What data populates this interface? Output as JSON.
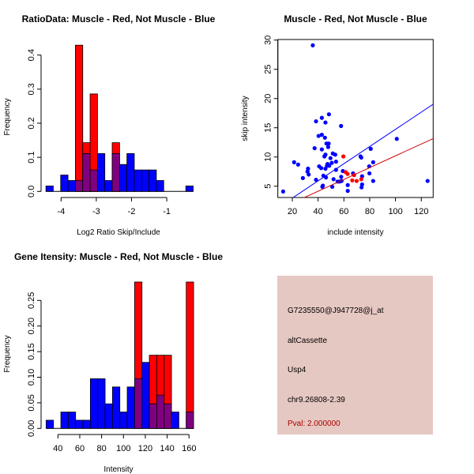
{
  "colors": {
    "muscle": "#ff0000",
    "not_muscle": "#0000ff",
    "overlap": "#800080",
    "panel_bg": "#e6c8c2",
    "pval_text": "#aa0000"
  },
  "chart_data": [
    {
      "type": "bar",
      "title": "RatioData: Muscle - Red, Not Muscle - Blue",
      "xlabel": "Log2 Ratio Skip/Include",
      "ylabel": "Frequency",
      "bin_start": -4.43,
      "bin_width": 0.209,
      "xticks": [
        -4,
        -3,
        -2,
        -1
      ],
      "xtick_labels": [
        "-4",
        "-3",
        "-2",
        "-1"
      ],
      "yticks": [
        0,
        0.1,
        0.2,
        0.3,
        0.4
      ],
      "ytick_labels": [
        "0.0",
        "0.1",
        "0.2",
        "0.3",
        "0.4"
      ],
      "ylim": [
        0,
        0.43
      ],
      "series": [
        {
          "name": "Not Muscle",
          "color": "#0000ff",
          "values": [
            0.016,
            0,
            0.048,
            0.032,
            0.032,
            0.111,
            0.063,
            0.111,
            0.032,
            0.111,
            0.079,
            0.111,
            0.063,
            0.063,
            0.063,
            0.032,
            0,
            0,
            0,
            0.016
          ]
        },
        {
          "name": "Muscle",
          "color": "#ff0000",
          "values": [
            0,
            0,
            0,
            0,
            0.429,
            0.143,
            0.286,
            0,
            0,
            0.143,
            0,
            0,
            0,
            0,
            0,
            0,
            0,
            0,
            0,
            0
          ]
        }
      ]
    },
    {
      "type": "scatter",
      "title": "Muscle - Red, Not Muscle - Blue",
      "xlabel": "include intensity",
      "ylabel": "skip intensity",
      "xlim": [
        8.8,
        129.2
      ],
      "ylim": [
        3.07,
        30.1
      ],
      "xticks": [
        20,
        40,
        60,
        80,
        100,
        120
      ],
      "xtick_labels": [
        "20",
        "40",
        "60",
        "80",
        "100",
        "120"
      ],
      "yticks": [
        5,
        10,
        15,
        20,
        25,
        30
      ],
      "ytick_labels": [
        "5",
        "10",
        "15",
        "20",
        "25",
        "30"
      ],
      "series": [
        {
          "name": "Not Muscle",
          "color": "#0000ff",
          "points": [
            [
              12.9,
              4.1
            ],
            [
              35.9,
              29.1
            ],
            [
              21.4,
              9.1
            ],
            [
              24.5,
              8.7
            ],
            [
              28.2,
              6.4
            ],
            [
              32.2,
              8.0
            ],
            [
              31.8,
              7.5
            ],
            [
              32.7,
              7.0
            ],
            [
              37.3,
              11.5
            ],
            [
              38.4,
              16.1
            ],
            [
              38.4,
              6.1
            ],
            [
              40.4,
              13.6
            ],
            [
              40.8,
              8.4
            ],
            [
              42.4,
              8.1
            ],
            [
              42.9,
              16.7
            ],
            [
              42.9,
              13.8
            ],
            [
              42.9,
              11.3
            ],
            [
              43.3,
              4.9
            ],
            [
              43.7,
              5.1
            ],
            [
              44.1,
              6.8
            ],
            [
              44.9,
              10.1
            ],
            [
              45.3,
              13.3
            ],
            [
              45.7,
              15.9
            ],
            [
              45.7,
              10.4
            ],
            [
              45.7,
              8.0
            ],
            [
              46.1,
              6.5
            ],
            [
              46.5,
              12.3
            ],
            [
              46.9,
              8.5
            ],
            [
              47.3,
              8.8
            ],
            [
              47.8,
              11.7
            ],
            [
              48.2,
              12.3
            ],
            [
              48.4,
              17.3
            ],
            [
              48.6,
              8.5
            ],
            [
              49.6,
              9.8
            ],
            [
              50.6,
              9.0
            ],
            [
              51.0,
              4.9
            ],
            [
              51.4,
              10.6
            ],
            [
              52.0,
              6.2
            ],
            [
              53.3,
              10.4
            ],
            [
              53.9,
              9.2
            ],
            [
              53.9,
              7.8
            ],
            [
              55.1,
              5.8
            ],
            [
              56.7,
              5.8
            ],
            [
              57.8,
              15.3
            ],
            [
              57.9,
              6.6
            ],
            [
              58.2,
              5.9
            ],
            [
              59.2,
              7.6
            ],
            [
              63.0,
              5.2
            ],
            [
              63.0,
              4.2
            ],
            [
              67.1,
              7.2
            ],
            [
              72.9,
              10.1
            ],
            [
              73.5,
              9.9
            ],
            [
              73.7,
              4.8
            ],
            [
              74.1,
              6.7
            ],
            [
              74.1,
              5.3
            ],
            [
              79.6,
              8.4
            ],
            [
              79.8,
              7.2
            ],
            [
              80.8,
              11.4
            ],
            [
              82.7,
              9.1
            ],
            [
              82.7,
              5.9
            ],
            [
              101.0,
              13.1
            ],
            [
              124.9,
              5.9
            ]
          ],
          "fit": {
            "slope": 0.147,
            "intercept": 0.03
          }
        },
        {
          "name": "Muscle",
          "color": "#ff0000",
          "points": [
            [
              59.6,
              10.1
            ],
            [
              61.4,
              7.4
            ],
            [
              62.9,
              7.1
            ],
            [
              66.5,
              6.0
            ],
            [
              67.9,
              6.9
            ],
            [
              69.9,
              5.9
            ],
            [
              73.5,
              6.2
            ]
          ],
          "fit": {
            "slope": 0.101,
            "intercept": 0.1,
            "line_color": "#cc0000"
          }
        }
      ]
    },
    {
      "type": "bar",
      "title": "Gene Itensity: Muscle - Red, Not Muscle - Blue",
      "xlabel": "Intensity",
      "ylabel": "Frequency",
      "bin_start": 29.2,
      "bin_width": 6.75,
      "xticks": [
        40,
        60,
        80,
        100,
        120,
        140,
        160
      ],
      "xtick_labels": [
        "40",
        "60",
        "80",
        "100",
        "120",
        "140",
        "160"
      ],
      "yticks": [
        0,
        0.05,
        0.1,
        0.15,
        0.2,
        0.25
      ],
      "ytick_labels": [
        "0.00",
        "0.05",
        "0.10",
        "0.15",
        "0.20",
        "0.25"
      ],
      "ylim": [
        0,
        0.286
      ],
      "series": [
        {
          "name": "Not Muscle",
          "color": "#0000ff",
          "values": [
            0.016,
            0,
            0.032,
            0.032,
            0.016,
            0.016,
            0.097,
            0.097,
            0.048,
            0.081,
            0.032,
            0.081,
            0.097,
            0.129,
            0.048,
            0.065,
            0.048,
            0.032,
            0,
            0.032
          ]
        },
        {
          "name": "Muscle",
          "color": "#ff0000",
          "values": [
            0,
            0,
            0,
            0,
            0,
            0,
            0,
            0,
            0,
            0,
            0,
            0,
            0.286,
            0,
            0.143,
            0.143,
            0.143,
            0,
            0,
            0.286
          ]
        }
      ]
    }
  ],
  "info_panel": {
    "probe_id": "G7235550@J947728@j_at",
    "event_type": "altCassette",
    "gene": "Usp4",
    "location": "chr9.26808-2.39",
    "pval": "Pval: 2.000000"
  }
}
